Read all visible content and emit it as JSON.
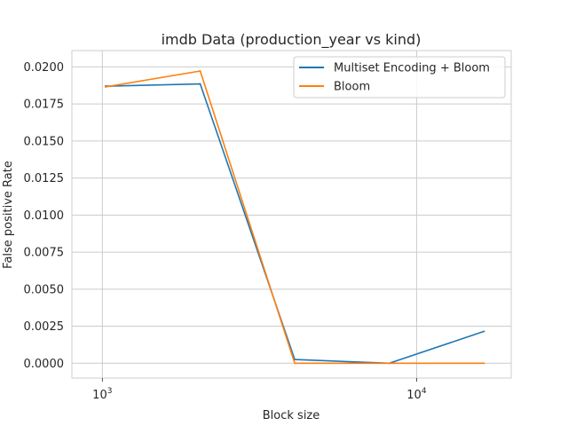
{
  "chart_data": {
    "type": "line",
    "title": "imdb Data (production_year vs kind)",
    "xlabel": "Block size",
    "ylabel": "False positive Rate",
    "xscale": "log",
    "x": [
      1024,
      2048,
      4096,
      8192,
      16384
    ],
    "xlim": [
      800,
      20000
    ],
    "ylim": [
      -0.001,
      0.0211
    ],
    "yticks": [
      "0.0000",
      "0.0025",
      "0.0050",
      "0.0075",
      "0.0100",
      "0.0125",
      "0.0150",
      "0.0175",
      "0.0200"
    ],
    "ytick_values": [
      0,
      0.0025,
      0.005,
      0.0075,
      0.01,
      0.0125,
      0.015,
      0.0175,
      0.02
    ],
    "xticks": [
      {
        "value": 1000,
        "base": "10",
        "exp": "3"
      },
      {
        "value": 10000,
        "base": "10",
        "exp": "4"
      }
    ],
    "grid": true,
    "legend_position": "top-right",
    "series": [
      {
        "name": "Multiset Encoding + Bloom",
        "color": "#1f77b4",
        "values": [
          0.0187,
          0.01885,
          0.00025,
          0.0,
          0.00215
        ]
      },
      {
        "name": "Bloom",
        "color": "#ff7f0e",
        "values": [
          0.01865,
          0.01972,
          0.0,
          0.0,
          0.0
        ]
      }
    ]
  }
}
